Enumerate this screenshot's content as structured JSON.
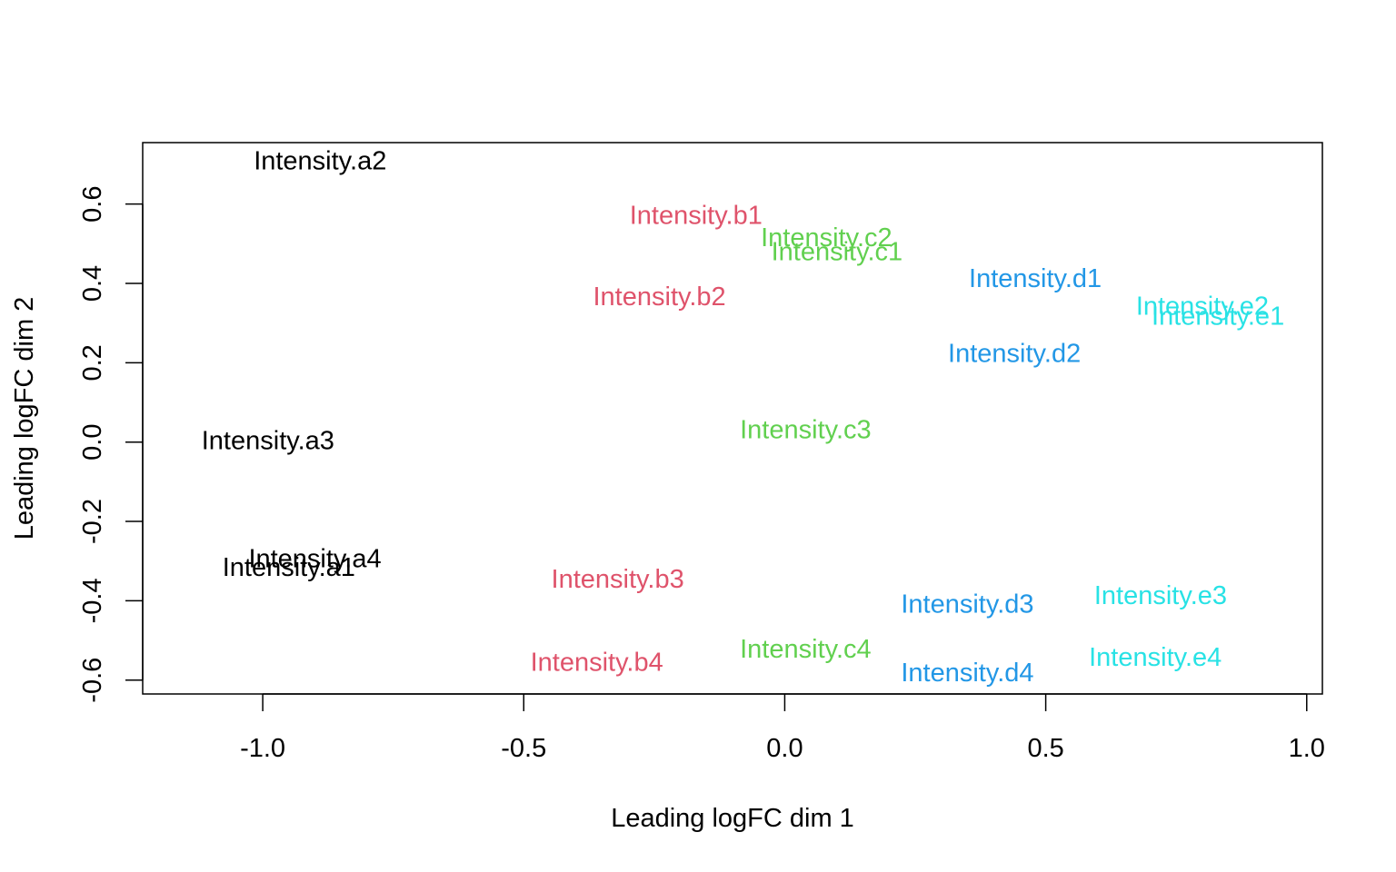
{
  "chart_data": {
    "type": "scatter",
    "title": "",
    "xlabel": "Leading logFC dim 1",
    "ylabel": "Leading logFC dim 2",
    "xlim": [
      -1.23,
      1.03
    ],
    "ylim": [
      -0.635,
      0.755
    ],
    "xticks": [
      {
        "value": -1.0,
        "label": "-1.0"
      },
      {
        "value": -0.5,
        "label": "-0.5"
      },
      {
        "value": 0.0,
        "label": "0.0"
      },
      {
        "value": 0.5,
        "label": "0.5"
      },
      {
        "value": 1.0,
        "label": "1.0"
      }
    ],
    "yticks": [
      {
        "value": -0.6,
        "label": "-0.6"
      },
      {
        "value": -0.4,
        "label": "-0.4"
      },
      {
        "value": -0.2,
        "label": "-0.2"
      },
      {
        "value": 0.0,
        "label": "0.0"
      },
      {
        "value": 0.2,
        "label": "0.2"
      },
      {
        "value": 0.4,
        "label": "0.4"
      },
      {
        "value": 0.6,
        "label": "0.6"
      }
    ],
    "grid": false,
    "legend": "none",
    "groups": [
      {
        "color": "#000000",
        "points": [
          {
            "label": "Intensity.a1",
            "x": -0.95,
            "y": -0.317
          },
          {
            "label": "Intensity.a2",
            "x": -0.89,
            "y": 0.708
          },
          {
            "label": "Intensity.a3",
            "x": -0.99,
            "y": 0.003
          },
          {
            "label": "Intensity.a4",
            "x": -0.9,
            "y": -0.295
          }
        ]
      },
      {
        "color": "#DF536B",
        "points": [
          {
            "label": "Intensity.b1",
            "x": -0.17,
            "y": 0.571
          },
          {
            "label": "Intensity.b2",
            "x": -0.24,
            "y": 0.366
          },
          {
            "label": "Intensity.b3",
            "x": -0.32,
            "y": -0.346
          },
          {
            "label": "Intensity.b4",
            "x": -0.36,
            "y": -0.556
          }
        ]
      },
      {
        "color": "#61D04F",
        "points": [
          {
            "label": "Intensity.c1",
            "x": 0.1,
            "y": 0.479
          },
          {
            "label": "Intensity.c2",
            "x": 0.08,
            "y": 0.514
          },
          {
            "label": "Intensity.c3",
            "x": 0.04,
            "y": 0.03
          },
          {
            "label": "Intensity.c4",
            "x": 0.04,
            "y": -0.523
          }
        ]
      },
      {
        "color": "#2297E6",
        "points": [
          {
            "label": "Intensity.d1",
            "x": 0.48,
            "y": 0.411
          },
          {
            "label": "Intensity.d2",
            "x": 0.44,
            "y": 0.223
          },
          {
            "label": "Intensity.d3",
            "x": 0.35,
            "y": -0.41
          },
          {
            "label": "Intensity.d4",
            "x": 0.35,
            "y": -0.582
          }
        ]
      },
      {
        "color": "#28E2E5",
        "points": [
          {
            "label": "Intensity.e1",
            "x": 0.83,
            "y": 0.316
          },
          {
            "label": "Intensity.e2",
            "x": 0.8,
            "y": 0.342
          },
          {
            "label": "Intensity.e3",
            "x": 0.72,
            "y": -0.388
          },
          {
            "label": "Intensity.e4",
            "x": 0.71,
            "y": -0.543
          }
        ]
      }
    ]
  }
}
